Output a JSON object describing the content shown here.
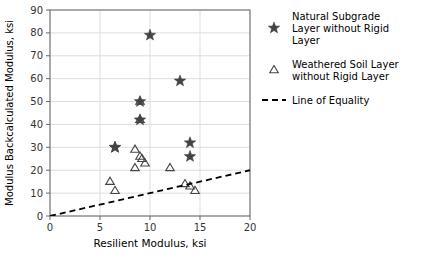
{
  "chart_data": {
    "type": "scatter",
    "xlabel": "Resilient Modulus, ksi",
    "ylabel": "Modulus Backcalculated Modulus, ksi",
    "xlim": [
      0,
      20
    ],
    "ylim": [
      0,
      90
    ],
    "xticks": [
      0,
      5,
      10,
      15,
      20
    ],
    "yticks": [
      0,
      10,
      20,
      30,
      40,
      50,
      60,
      70,
      80,
      90
    ],
    "grid": true,
    "legend": "right",
    "series": [
      {
        "name": "Natural Subgrade\nLayer without Rigid\nLayer",
        "type": "scatter",
        "marker": "star",
        "color": "#444444",
        "x": [
          6.5,
          6.5,
          9.0,
          9.0,
          10.0,
          13.0,
          14.0,
          14.0
        ],
        "values": [
          30,
          30,
          50,
          42,
          79,
          59,
          32,
          26
        ]
      },
      {
        "name": "Weathered Soil Layer\nwithout Rigid Layer",
        "type": "scatter",
        "marker": "triangle-open",
        "color": "#444444",
        "x": [
          6.0,
          6.5,
          8.5,
          8.5,
          9.0,
          9.0,
          9.0,
          9.2,
          9.5,
          12.0,
          13.5,
          14.0,
          14.5
        ],
        "values": [
          15,
          11,
          29,
          21,
          50,
          42,
          26,
          25,
          23,
          21,
          14,
          13,
          11
        ]
      },
      {
        "name": "Line of Equality",
        "type": "line",
        "line_style": "dashed",
        "color": "#000000",
        "x": [
          0,
          20
        ],
        "values": [
          0,
          20
        ]
      }
    ]
  }
}
